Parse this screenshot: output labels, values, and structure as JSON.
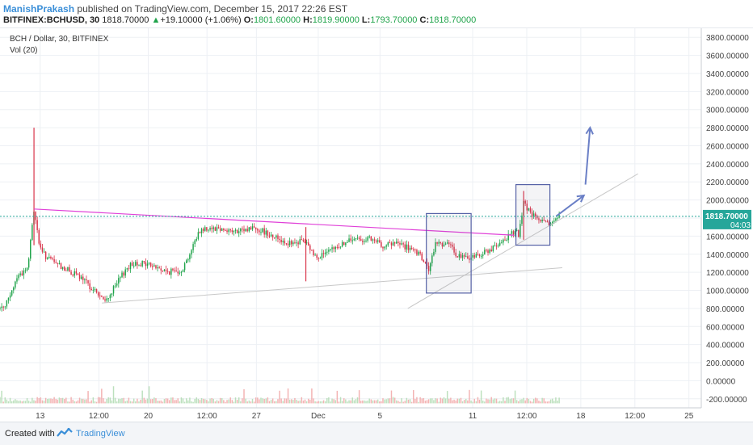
{
  "header": {
    "author": "ManishPrakash",
    "published": "published on TradingView.com, December 15, 2017 22:26 EST",
    "symbol": "BITFINEX:BCHUSD, 30",
    "last": "1818.70000",
    "arrow": "▲",
    "change": "+19.10000 (+1.06%)",
    "o_label": "O:",
    "o_value": "1801.60000",
    "h_label": "H:",
    "h_value": "1819.90000",
    "l_label": "L:",
    "l_value": "1793.70000",
    "c_label": "C:",
    "c_value": "1818.70000"
  },
  "legend": {
    "series": "BCH / Dollar, 30, BITFINEX",
    "volume": "Vol (20)"
  },
  "footer": {
    "created": "Created with",
    "brand": "TradingView",
    "logo_icon": "tradingview-logo-icon"
  },
  "colors": {
    "up": "#1fa34a",
    "down": "#d9344a",
    "grid": "#edf0f4",
    "trendline": "#e040d8",
    "support": "#c8c8c8",
    "box": "#5561a6",
    "arrow": "#6a7fc6",
    "price_line": "#26a69a"
  },
  "chart_data": {
    "type": "candlestick",
    "title": "BCH / Dollar, 30, BITFINEX",
    "ylim": [
      -300,
      3900
    ],
    "y_ticks": [
      -200,
      0,
      200,
      400,
      600,
      800,
      1000,
      1200,
      1400,
      1600,
      1800,
      2000,
      2200,
      2400,
      2600,
      2800,
      3000,
      3200,
      3400,
      3600,
      3800
    ],
    "y_tick_labels": [
      "-200.00000",
      "0.00000",
      "200.00000",
      "400.00000",
      "600.00000",
      "800.00000",
      "1000.00000",
      "1200.00000",
      "1400.00000",
      "1600.00000",
      "1800.00000",
      "2000.00000",
      "2200.00000",
      "2400.00000",
      "2600.00000",
      "2800.00000",
      "3000.00000",
      "3200.00000",
      "3400.00000",
      "3600.00000",
      "3800.00000"
    ],
    "x_ticks": [
      {
        "label": "13",
        "t": 3
      },
      {
        "label": "12:00",
        "t": 6.8
      },
      {
        "label": "20",
        "t": 10
      },
      {
        "label": "12:00",
        "t": 13.8
      },
      {
        "label": "27",
        "t": 17
      },
      {
        "label": "Dec",
        "t": 21
      },
      {
        "label": "5",
        "t": 25
      },
      {
        "label": "11",
        "t": 31
      },
      {
        "label": "12:00",
        "t": 34.5
      },
      {
        "label": "18",
        "t": 38
      },
      {
        "label": "12:00",
        "t": 41.5
      },
      {
        "label": "25",
        "t": 45
      }
    ],
    "xlim": [
      0.4,
      45.8
    ],
    "last_price": 1818.7,
    "last_price_label": "1818.70000",
    "countdown": "04:03",
    "path": [
      [
        0.4,
        800
      ],
      [
        1.0,
        900
      ],
      [
        1.5,
        1150
      ],
      [
        2.2,
        1250
      ],
      [
        2.6,
        1900
      ],
      [
        3.0,
        1450
      ],
      [
        3.5,
        1350
      ],
      [
        4.5,
        1250
      ],
      [
        5.5,
        1150
      ],
      [
        6.2,
        1050
      ],
      [
        6.8,
        950
      ],
      [
        7.2,
        870
      ],
      [
        8.0,
        1080
      ],
      [
        8.6,
        1250
      ],
      [
        9.2,
        1310
      ],
      [
        10.2,
        1280
      ],
      [
        11.2,
        1200
      ],
      [
        12.2,
        1230
      ],
      [
        12.8,
        1450
      ],
      [
        13.3,
        1660
      ],
      [
        14.0,
        1700
      ],
      [
        14.8,
        1680
      ],
      [
        15.8,
        1640
      ],
      [
        16.8,
        1700
      ],
      [
        17.8,
        1630
      ],
      [
        18.6,
        1560
      ],
      [
        19.4,
        1500
      ],
      [
        20.0,
        1560
      ],
      [
        20.8,
        1380
      ],
      [
        21.6,
        1410
      ],
      [
        22.4,
        1500
      ],
      [
        23.2,
        1560
      ],
      [
        24.2,
        1570
      ],
      [
        25.2,
        1500
      ],
      [
        26.2,
        1520
      ],
      [
        27.0,
        1450
      ],
      [
        27.6,
        1380
      ],
      [
        28.2,
        1220
      ],
      [
        28.6,
        1530
      ],
      [
        29.4,
        1510
      ],
      [
        30.0,
        1390
      ],
      [
        30.6,
        1350
      ],
      [
        31.3,
        1390
      ],
      [
        32.0,
        1440
      ],
      [
        32.8,
        1500
      ],
      [
        33.3,
        1610
      ],
      [
        33.7,
        1650
      ],
      [
        34.0,
        1620
      ],
      [
        34.3,
        1960
      ],
      [
        34.8,
        1840
      ],
      [
        35.3,
        1780
      ],
      [
        35.8,
        1720
      ],
      [
        36.3,
        1780
      ],
      [
        36.6,
        1818
      ]
    ],
    "spikes": [
      {
        "t": 2.6,
        "high": 2800,
        "low": 1500
      },
      {
        "t": 20.2,
        "high": 1700,
        "low": 1100
      },
      {
        "t": 34.3,
        "high": 2100,
        "low": 1560
      }
    ],
    "drawings": {
      "trendline": [
        [
          2.6,
          1900
        ],
        [
          33.7,
          1610
        ]
      ],
      "support_line": [
        [
          7.0,
          860
        ],
        [
          36.8,
          1250
        ]
      ],
      "rising_line": [
        [
          26.8,
          800
        ],
        [
          41.7,
          2290
        ]
      ],
      "box1": [
        [
          28.0,
          1850
        ],
        [
          30.9,
          970
        ]
      ],
      "box2": [
        [
          33.8,
          2170
        ],
        [
          36.0,
          1500
        ]
      ],
      "arrow_short": [
        [
          36.4,
          1820
        ],
        [
          38.2,
          2050
        ]
      ],
      "arrow_long": [
        [
          38.3,
          2170
        ],
        [
          38.6,
          2800
        ]
      ]
    }
  }
}
